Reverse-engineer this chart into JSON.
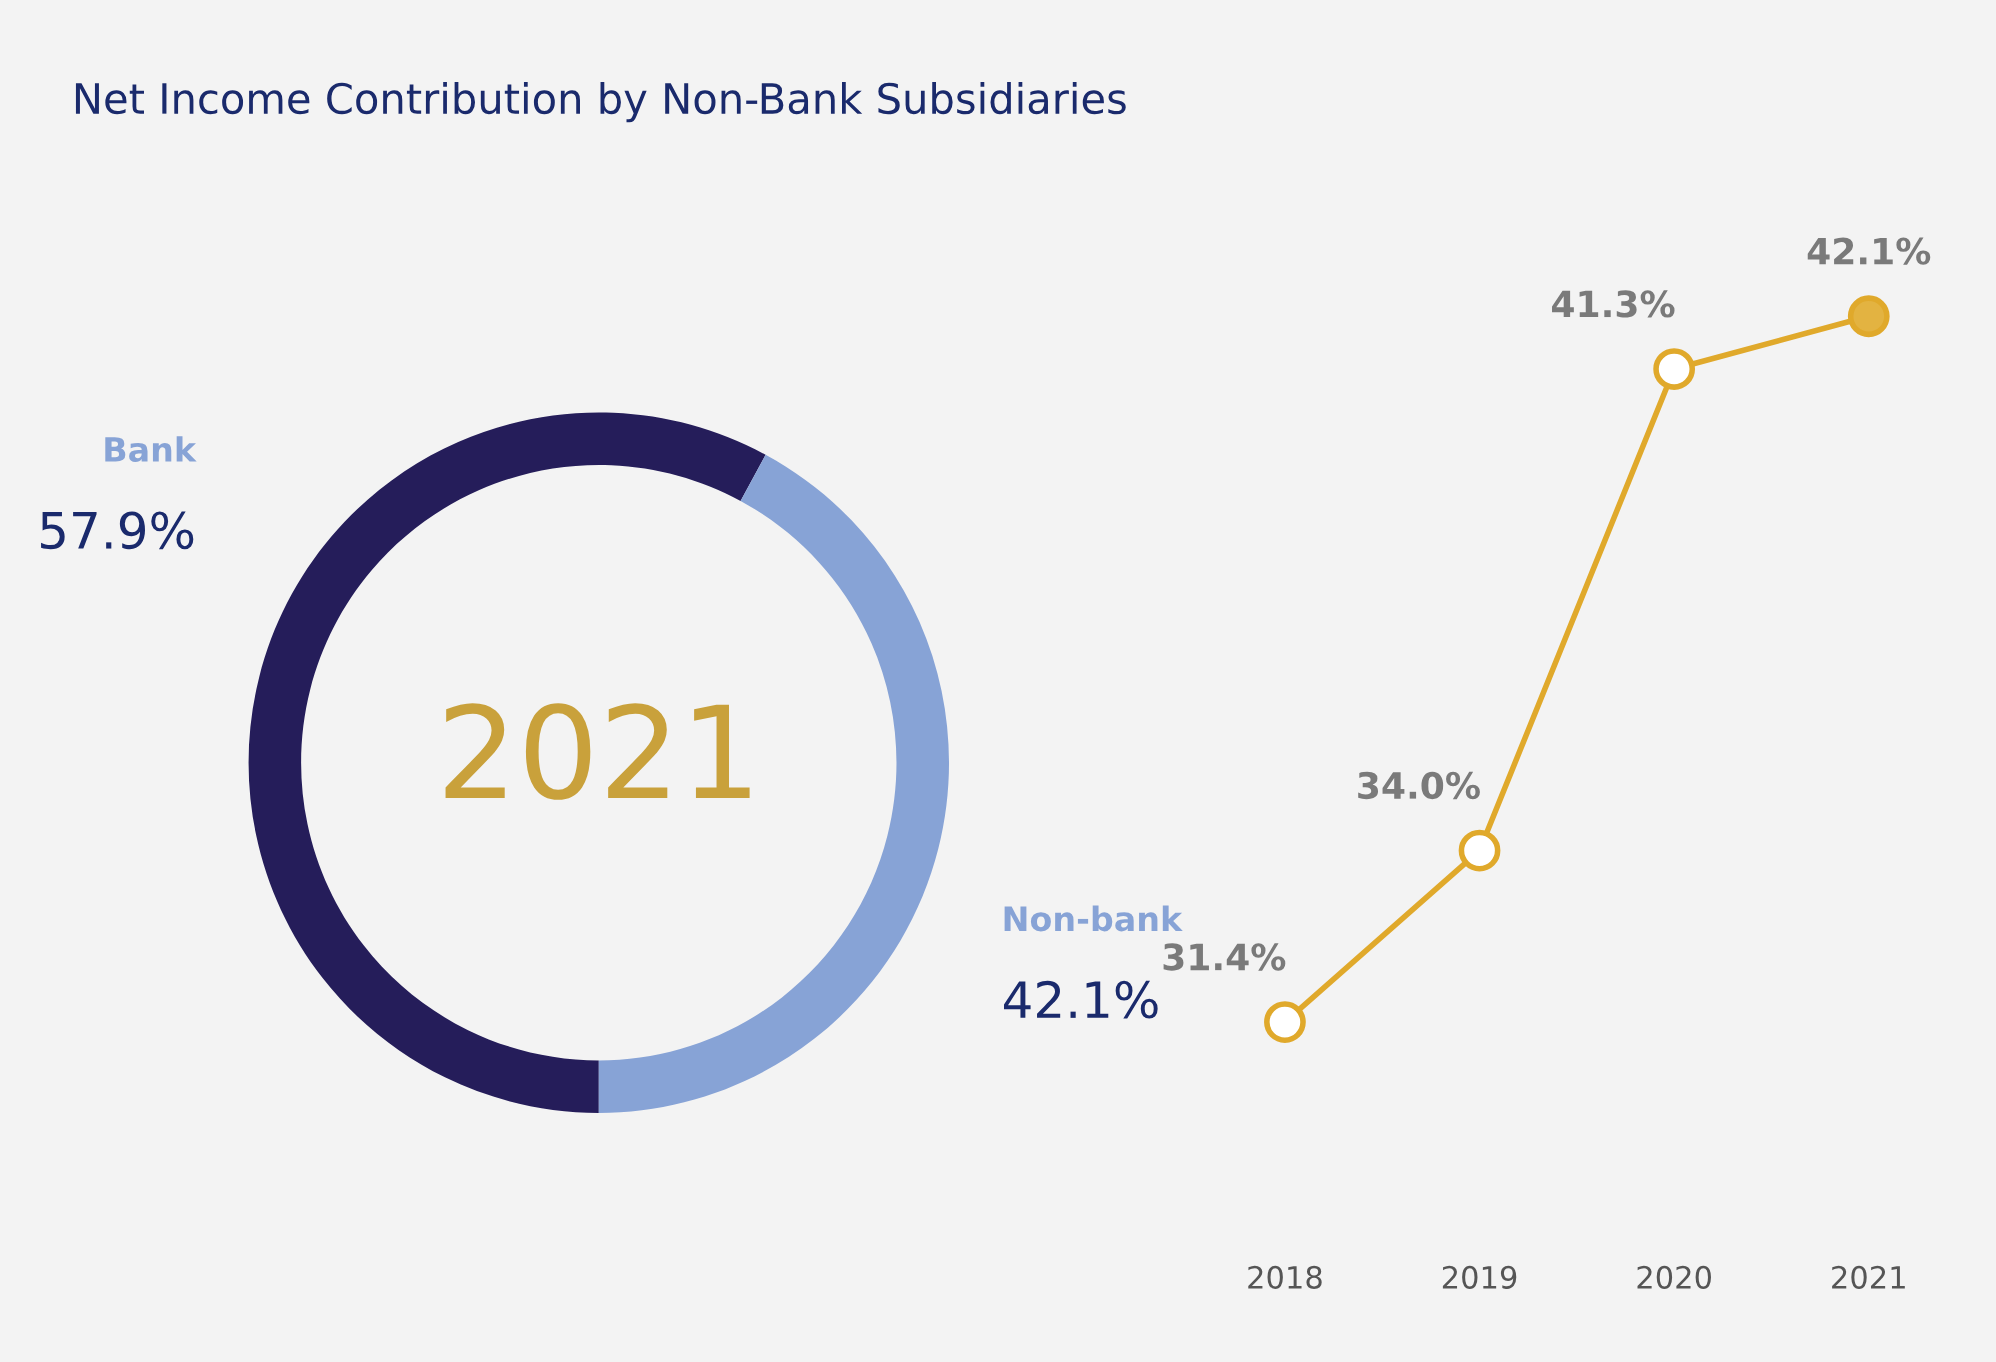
{
  "chart_data": [
    {
      "type": "donut",
      "title": "Net Income Contribution by Non-Bank Subsidiaries",
      "categories": [
        "Bank",
        "Non-bank"
      ],
      "values": [
        57.9,
        42.1
      ],
      "colors": [
        "#251d5a",
        "#87a3d6"
      ],
      "value_labels": [
        "57.9%",
        "42.1%"
      ],
      "annotations": [
        "2021"
      ]
    },
    {
      "type": "line",
      "categories": [
        "2018",
        "2019",
        "2020",
        "2021"
      ],
      "values": [
        31.4,
        34.0,
        41.3,
        42.1
      ],
      "color": "#e0a92b",
      "colors": [
        "#ffffff",
        "#ffffff",
        "#ffffff",
        "#e3b341"
      ],
      "marker": "circle",
      "line_style": "solid",
      "value_labels": [
        "31.4%",
        "34.0%",
        "41.3%",
        "42.1%"
      ]
    }
  ]
}
